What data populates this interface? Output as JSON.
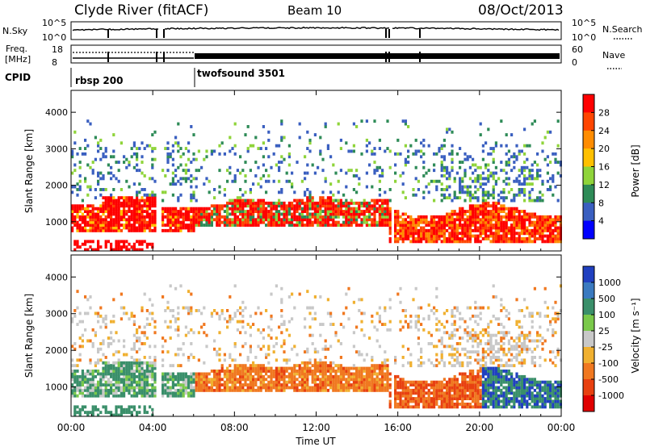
{
  "header": {
    "station": "Clyde River (fitACF)",
    "beam": "Beam 10",
    "date": "08/Oct/2013"
  },
  "labels": {
    "nsky": "N.Sky",
    "nsearch": "N.Search",
    "freq_line1": "Freq.",
    "freq_line2": "[MHz]",
    "nave": "Nave",
    "cpid": "CPID",
    "cpid_segments": [
      "rbsp 200",
      "twofsound 3501"
    ],
    "xlabel": "Time UT"
  },
  "chart_data": [
    {
      "type": "line",
      "title": "",
      "left_ticks": [
        "10^5",
        "10^0"
      ],
      "right_ticks": [
        "10^5",
        "10^0"
      ],
      "series": [
        {
          "name": "N.Sky"
        },
        {
          "name": "N.Search"
        }
      ]
    },
    {
      "type": "line",
      "left_ticks": [
        "18",
        "8"
      ],
      "right_ticks": [
        "60",
        "0"
      ],
      "series": [
        {
          "name": "Freq. [MHz]"
        },
        {
          "name": "Nave"
        }
      ],
      "cpid": [
        {
          "label": "rbsp 200",
          "start_hour": 0,
          "end_hour": 6
        },
        {
          "label": "twofsound 3501",
          "start_hour": 6,
          "end_hour": 24
        }
      ]
    },
    {
      "type": "heatmap",
      "ylabel": "Slant Range [km]",
      "xlabel": "",
      "y_ticks": [
        "1000",
        "2000",
        "3000",
        "4000"
      ],
      "ylim": [
        200,
        4600
      ],
      "xlim": [
        0,
        24
      ],
      "colorbar": {
        "label": "Power [dB]",
        "ticks": [
          "28",
          "24",
          "20",
          "16",
          "12",
          "8",
          "4"
        ],
        "colors": [
          "#ff0000",
          "#ff4500",
          "#ff8c00",
          "#ffc000",
          "#8fd43a",
          "#2e8b57",
          "#3a5fc0",
          "#0000ff"
        ]
      }
    },
    {
      "type": "heatmap",
      "ylabel": "Slant Range [km]",
      "xlabel": "Time UT",
      "y_ticks": [
        "1000",
        "2000",
        "3000",
        "4000"
      ],
      "x_ticks": [
        "00:00",
        "04:00",
        "08:00",
        "12:00",
        "16:00",
        "20:00",
        "00:00"
      ],
      "ylim": [
        200,
        4600
      ],
      "xlim": [
        0,
        24
      ],
      "colorbar": {
        "label": "Velocity [m s⁻¹]",
        "ticks": [
          "1000",
          "500",
          "100",
          "25",
          "-25",
          "-100",
          "-500",
          "-1000"
        ],
        "colors": [
          "#2040c0",
          "#3a7ac0",
          "#3a8f6a",
          "#7ac94a",
          "#c8c8c8",
          "#f0b030",
          "#f07820",
          "#e84010",
          "#e00000"
        ]
      }
    }
  ]
}
